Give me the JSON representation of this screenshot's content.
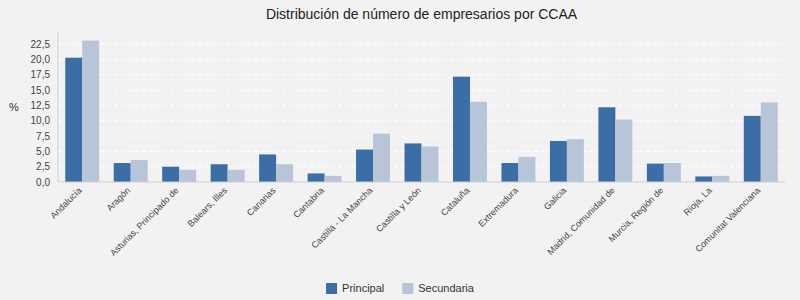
{
  "chart_data": {
    "type": "bar",
    "title": "Distribución de número de empresarios por CCAA",
    "ylabel": "%",
    "categories": [
      "Andalucía",
      "Aragón",
      "Asturias, Principado de",
      "Balears, Illes",
      "Canarias",
      "Cantabria",
      "Castilla - La Mancha",
      "Castilla y León",
      "Cataluña",
      "Extremadura",
      "Galicia",
      "Madrid, Comunidad de",
      "Murcia, Región de",
      "Rioja, La",
      "Comunitat Valenciana"
    ],
    "series": [
      {
        "name": "Principal",
        "color": "#3a6ea5",
        "values": [
          20.3,
          3.1,
          2.5,
          2.9,
          4.5,
          1.4,
          5.3,
          6.3,
          17.2,
          3.1,
          6.7,
          12.2,
          3.0,
          0.9,
          10.8
        ]
      },
      {
        "name": "Secundaria",
        "color": "#b8c4d8",
        "values": [
          23.1,
          3.6,
          2.0,
          2.0,
          2.9,
          1.0,
          7.9,
          5.8,
          13.1,
          4.1,
          7.0,
          10.2,
          3.1,
          1.0,
          13.0
        ]
      }
    ],
    "ylim": [
      0,
      24.5
    ],
    "yticks": [
      {
        "value": 0.0,
        "label": "0,0"
      },
      {
        "value": 2.5,
        "label": "2,5"
      },
      {
        "value": 5.0,
        "label": "5,0"
      },
      {
        "value": 7.5,
        "label": "7,5"
      },
      {
        "value": 10.0,
        "label": "10,0"
      },
      {
        "value": 12.5,
        "label": "12,5"
      },
      {
        "value": 15.0,
        "label": "15,0"
      },
      {
        "value": 17.5,
        "label": "17,5"
      },
      {
        "value": 20.0,
        "label": "20,0"
      },
      {
        "value": 22.5,
        "label": "22,5"
      }
    ],
    "grid": true,
    "legend": "bottom"
  }
}
